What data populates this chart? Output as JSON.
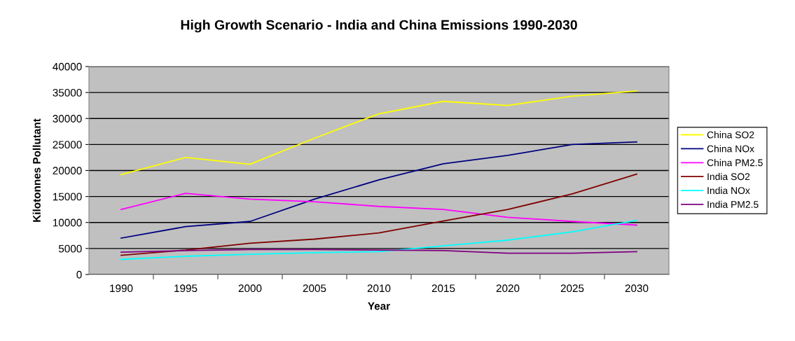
{
  "chart_data": {
    "type": "line",
    "title": "High Growth Scenario - India and China Emissions 1990-2030",
    "xlabel": "Year",
    "ylabel": "Kilotonnes Pollutant",
    "categories": [
      "1990",
      "1995",
      "2000",
      "2005",
      "2010",
      "2015",
      "2020",
      "2025",
      "2030"
    ],
    "series": [
      {
        "name": "China SO2",
        "color": "#ffff00",
        "values": [
          19200,
          22500,
          21200,
          26200,
          30900,
          33300,
          32500,
          34300,
          35300
        ]
      },
      {
        "name": "China NOx",
        "color": "#000080",
        "values": [
          7000,
          9200,
          10200,
          14500,
          18200,
          21300,
          22900,
          25000,
          25500
        ]
      },
      {
        "name": "China PM2.5",
        "color": "#ff00ff",
        "values": [
          12500,
          15600,
          14500,
          14000,
          13100,
          12500,
          11000,
          10200,
          9500
        ]
      },
      {
        "name": "India SO2",
        "color": "#800000",
        "values": [
          3700,
          4700,
          6000,
          6800,
          8000,
          10300,
          12500,
          15500,
          19300
        ]
      },
      {
        "name": "India NOx",
        "color": "#00ffff",
        "values": [
          2900,
          3500,
          3900,
          4200,
          4400,
          5500,
          6600,
          8200,
          10400
        ]
      },
      {
        "name": "India PM2.5",
        "color": "#800080",
        "values": [
          4300,
          4600,
          4800,
          4800,
          4700,
          4600,
          4100,
          4100,
          4400
        ]
      }
    ],
    "ylim": [
      0,
      40000
    ],
    "yticks": [
      0,
      5000,
      10000,
      15000,
      20000,
      25000,
      30000,
      35000,
      40000
    ],
    "grid": "y",
    "legend": "right",
    "marker": "none",
    "line_style": "solid"
  }
}
